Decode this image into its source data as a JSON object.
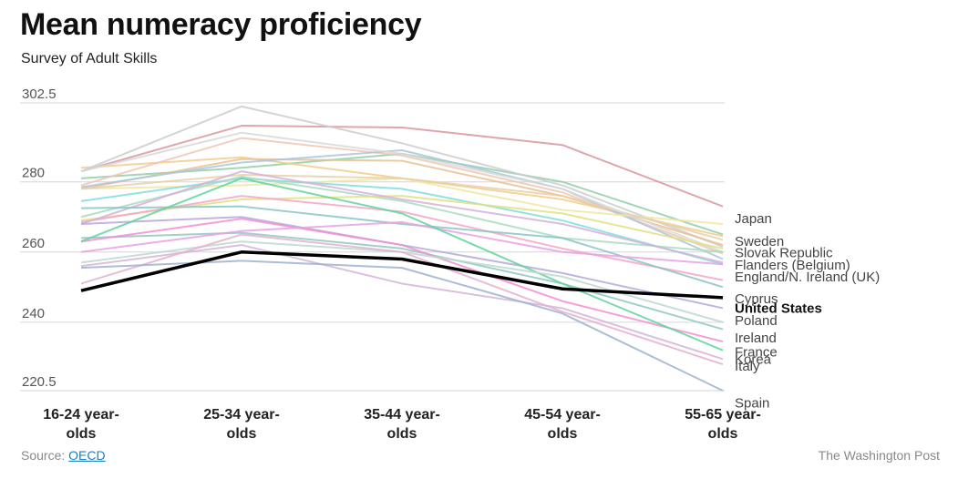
{
  "header": {
    "title": "Mean numeracy proficiency",
    "subtitle": "Survey of Adult Skills"
  },
  "footer": {
    "source_label": "Source:",
    "source_link": "OECD",
    "credit": "The Washington Post"
  },
  "chart_data": {
    "type": "line",
    "title": "Mean numeracy proficiency",
    "subtitle": "Survey of Adult Skills",
    "categories": [
      "16-24 year-olds",
      "25-34 year-olds",
      "35-44 year-olds",
      "45-54 year-olds",
      "55-65 year-olds"
    ],
    "y_ticks": [
      302.5,
      280,
      260,
      240,
      220.5
    ],
    "ylim": [
      220.5,
      302.5
    ],
    "grid": true,
    "highlight_color": "#000000",
    "series": [
      {
        "name": "Japan",
        "color": "#d9969e",
        "values": [
          283,
          296,
          295.5,
          290.5,
          273
        ]
      },
      {
        "name": "Sweden",
        "color": "#8fcfa8",
        "values": [
          281,
          284,
          288,
          280,
          265
        ]
      },
      {
        "name": "",
        "color": "#f2cc8a",
        "values": [
          284,
          287,
          281,
          275,
          264.5
        ]
      },
      {
        "name": "Slovak Republic",
        "color": "#cccccc",
        "values": [
          283,
          301.5,
          291,
          279,
          261.5
        ]
      },
      {
        "name": "",
        "color": "#e8c090",
        "values": [
          278,
          286.5,
          286,
          276,
          262
        ]
      },
      {
        "name": "",
        "color": "#f0c6b4",
        "values": [
          279,
          292.5,
          287.5,
          277,
          259.5
        ]
      },
      {
        "name": "Flanders (Belgium)",
        "color": "#aac6da",
        "values": [
          278.5,
          285.5,
          289,
          278,
          258
        ]
      },
      {
        "name": "",
        "color": "#f0e6a0",
        "values": [
          278,
          279,
          281,
          272,
          268
        ]
      },
      {
        "name": "",
        "color": "#e6d0a8",
        "values": [
          278,
          282,
          281,
          276,
          263.5
        ]
      },
      {
        "name": "",
        "color": "#d8d8d8",
        "values": [
          283,
          294,
          288,
          278,
          260
        ]
      },
      {
        "name": "England/N. Ireland (UK)",
        "color": "#7fdde0",
        "values": [
          274.5,
          281,
          278,
          269,
          256.5
        ]
      },
      {
        "name": "",
        "color": "#a8dcc0",
        "values": [
          270,
          281.5,
          274.5,
          264,
          260
        ]
      },
      {
        "name": "",
        "color": "#e0e080",
        "values": [
          269,
          275,
          276,
          271,
          261
        ]
      },
      {
        "name": "",
        "color": "#f4a6c4",
        "values": [
          268.5,
          276,
          271.5,
          261,
          252
        ]
      },
      {
        "name": "",
        "color": "#d6b0d8",
        "values": [
          268,
          283,
          275,
          268,
          257
        ]
      },
      {
        "name": "Cyprus",
        "color": "#88c4c4",
        "values": [
          272.5,
          273,
          268,
          264,
          250
        ]
      },
      {
        "name": "",
        "color": "#b4a8dc",
        "values": [
          268,
          270,
          262,
          254,
          244
        ]
      },
      {
        "name": "Poland",
        "color": "#90c8c0",
        "values": [
          264,
          265.5,
          261,
          251,
          238
        ]
      },
      {
        "name": "Ireland",
        "color": "#f48cd4",
        "values": [
          263,
          269.5,
          262,
          246,
          234.5
        ]
      },
      {
        "name": "",
        "color": "#e8a0e8",
        "values": [
          260,
          266,
          268.5,
          260,
          256.5
        ]
      },
      {
        "name": "France",
        "color": "#60d49c",
        "values": [
          263,
          281,
          271,
          251,
          232
        ]
      },
      {
        "name": "Korea",
        "color": "#bcd8d0",
        "values": [
          257,
          263,
          260,
          253,
          240
        ]
      },
      {
        "name": "",
        "color": "#d4b4d8",
        "values": [
          256,
          262,
          251,
          244,
          229.5
        ]
      },
      {
        "name": "",
        "color": "#e4b0d0",
        "values": [
          251,
          265,
          260,
          243,
          228
        ]
      },
      {
        "name": "Spain",
        "color": "#9cb2d0",
        "values": [
          255.5,
          257.5,
          255.5,
          242.5,
          220.5
        ]
      },
      {
        "name": "United States",
        "color": "#000000",
        "highlight": true,
        "values": [
          249,
          260,
          258,
          249.5,
          247
        ]
      }
    ],
    "end_labels": [
      {
        "text": "Japan",
        "value": 269.5
      },
      {
        "text": "Sweden",
        "value": 263
      },
      {
        "text": "Slovak Republic",
        "value": 259.8
      },
      {
        "text": "Flanders (Belgium)",
        "value": 256.3
      },
      {
        "text": "England/N. Ireland (UK)",
        "value": 253
      },
      {
        "text": "Cyprus",
        "value": 246.7
      },
      {
        "text": "United States",
        "value": 244,
        "bold": true
      },
      {
        "text": "Poland",
        "value": 240.5
      },
      {
        "text": "Ireland",
        "value": 235.5
      },
      {
        "text": "France",
        "value": 231.5
      },
      {
        "text": "Korea",
        "value": 229.5
      },
      {
        "text": "Italy",
        "value": 227.5
      },
      {
        "text": "Spain",
        "value": 217
      }
    ]
  }
}
